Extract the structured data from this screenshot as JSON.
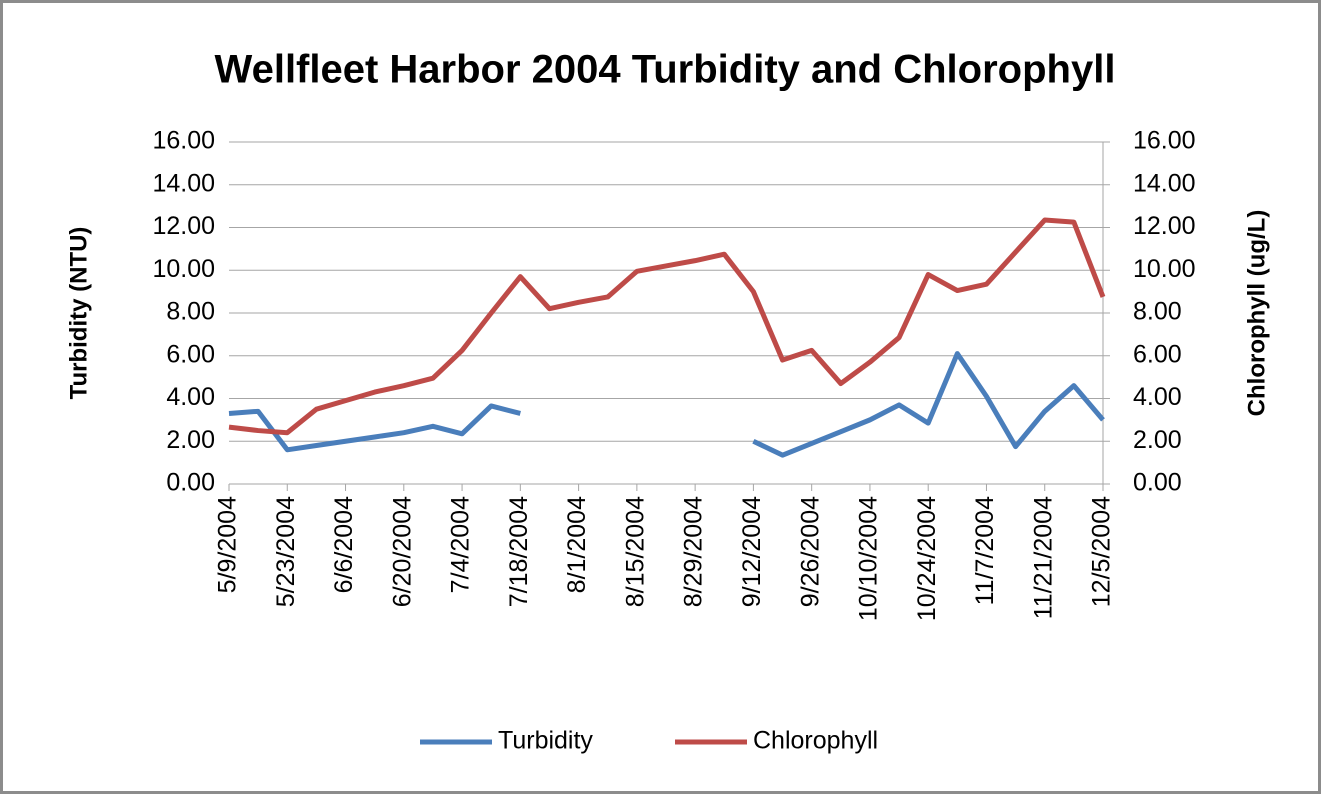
{
  "chart_data": {
    "type": "line",
    "title": "Wellfleet Harbor 2004 Turbidity and Chlorophyll",
    "y_label": "Turbidity (NTU)",
    "y2_label": "Chlorophyll (ug/L)",
    "x": [
      "5/9/2004",
      "5/16/2004",
      "5/23/2004",
      "5/30/2004",
      "6/6/2004",
      "6/13/2004",
      "6/20/2004",
      "6/27/2004",
      "7/4/2004",
      "7/11/2004",
      "7/18/2004",
      "7/25/2004",
      "8/1/2004",
      "8/8/2004",
      "8/15/2004",
      "8/22/2004",
      "8/29/2004",
      "9/5/2004",
      "9/12/2004",
      "9/19/2004",
      "9/26/2004",
      "10/3/2004",
      "10/10/2004",
      "10/17/2004",
      "10/24/2004",
      "10/31/2004",
      "11/7/2004",
      "11/14/2004",
      "11/21/2004",
      "11/28/2004",
      "12/5/2004"
    ],
    "xlim": [
      "5/9/2004",
      "12/5/2004"
    ],
    "xticks": [
      "5/9/2004",
      "5/23/2004",
      "6/6/2004",
      "6/20/2004",
      "7/4/2004",
      "7/18/2004",
      "8/1/2004",
      "8/15/2004",
      "8/29/2004",
      "9/12/2004",
      "9/26/2004",
      "10/10/2004",
      "10/24/2004",
      "11/7/2004",
      "11/21/2004",
      "12/5/2004"
    ],
    "series": [
      {
        "name": "Turbidity",
        "color": "#4a7ebb",
        "axis": "y",
        "values": [
          3.3,
          3.4,
          1.6,
          1.8,
          2.0,
          2.2,
          2.4,
          2.7,
          2.35,
          3.65,
          3.3,
          null,
          null,
          null,
          null,
          null,
          null,
          null,
          2.0,
          1.35,
          1.9,
          2.45,
          3.0,
          3.7,
          2.85,
          6.1,
          4.1,
          1.75,
          3.4,
          4.6,
          3.0
        ]
      },
      {
        "name": "Chlorophyll",
        "color": "#be4b48",
        "axis": "y2",
        "values": [
          2.66,
          2.5,
          2.4,
          3.5,
          3.9,
          4.3,
          4.6,
          4.95,
          6.25,
          8.0,
          9.7,
          8.2,
          8.5,
          8.75,
          9.95,
          10.2,
          10.45,
          10.75,
          9.0,
          5.8,
          6.25,
          4.7,
          5.7,
          6.85,
          9.8,
          9.05,
          9.35,
          10.85,
          12.35,
          12.25,
          8.75
        ]
      }
    ],
    "ylim": [
      0,
      16
    ],
    "yticks": [
      {
        "value": 0,
        "label": "0.00"
      },
      {
        "value": 2,
        "label": "2.00"
      },
      {
        "value": 4,
        "label": "4.00"
      },
      {
        "value": 6,
        "label": "6.00"
      },
      {
        "value": 8,
        "label": "8.00"
      },
      {
        "value": 10,
        "label": "10.00"
      },
      {
        "value": 12,
        "label": "12.00"
      },
      {
        "value": 14,
        "label": "14.00"
      },
      {
        "value": 16,
        "label": "16.00"
      }
    ],
    "y2lim": [
      0,
      16
    ],
    "y2ticks": [
      {
        "value": 0,
        "label": "0.00"
      },
      {
        "value": 2,
        "label": "2.00"
      },
      {
        "value": 4,
        "label": "4.00"
      },
      {
        "value": 6,
        "label": "6.00"
      },
      {
        "value": 8,
        "label": "8.00"
      },
      {
        "value": 10,
        "label": "10.00"
      },
      {
        "value": 12,
        "label": "12.00"
      },
      {
        "value": 14,
        "label": "14.00"
      },
      {
        "value": 16,
        "label": "16.00"
      }
    ],
    "grid": true,
    "legend": "bottom"
  }
}
